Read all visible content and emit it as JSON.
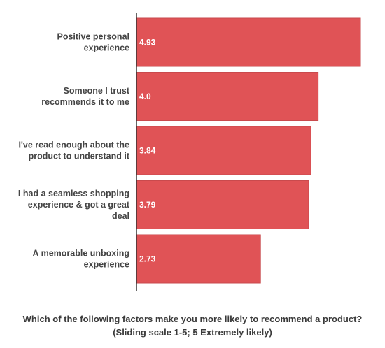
{
  "chart_data": {
    "type": "bar",
    "orientation": "horizontal",
    "categories": [
      [
        "Positive personal",
        "experience"
      ],
      [
        "Someone I trust",
        "recommends it to me"
      ],
      [
        "I've read enough about the",
        "product to understand it"
      ],
      [
        "I had a seamless shopping",
        "experience & got a great",
        "deal"
      ],
      [
        "A memorable unboxing",
        "experience"
      ]
    ],
    "values": [
      4.93,
      4.0,
      3.84,
      3.79,
      2.73
    ],
    "value_labels": [
      "4.93",
      "4.0",
      "3.84",
      "3.79",
      "2.73"
    ],
    "xlim": [
      0,
      4.93
    ],
    "grid": false,
    "legend": "none",
    "title_lines": [
      "Which of the following factors make you more likely to recommend a product?",
      "(Sliding scale 1-5; 5 Extremely likely)"
    ],
    "colors": {
      "bar": "#e05356",
      "bar_stroke": "#c94a4d",
      "axis": "#333333"
    }
  }
}
